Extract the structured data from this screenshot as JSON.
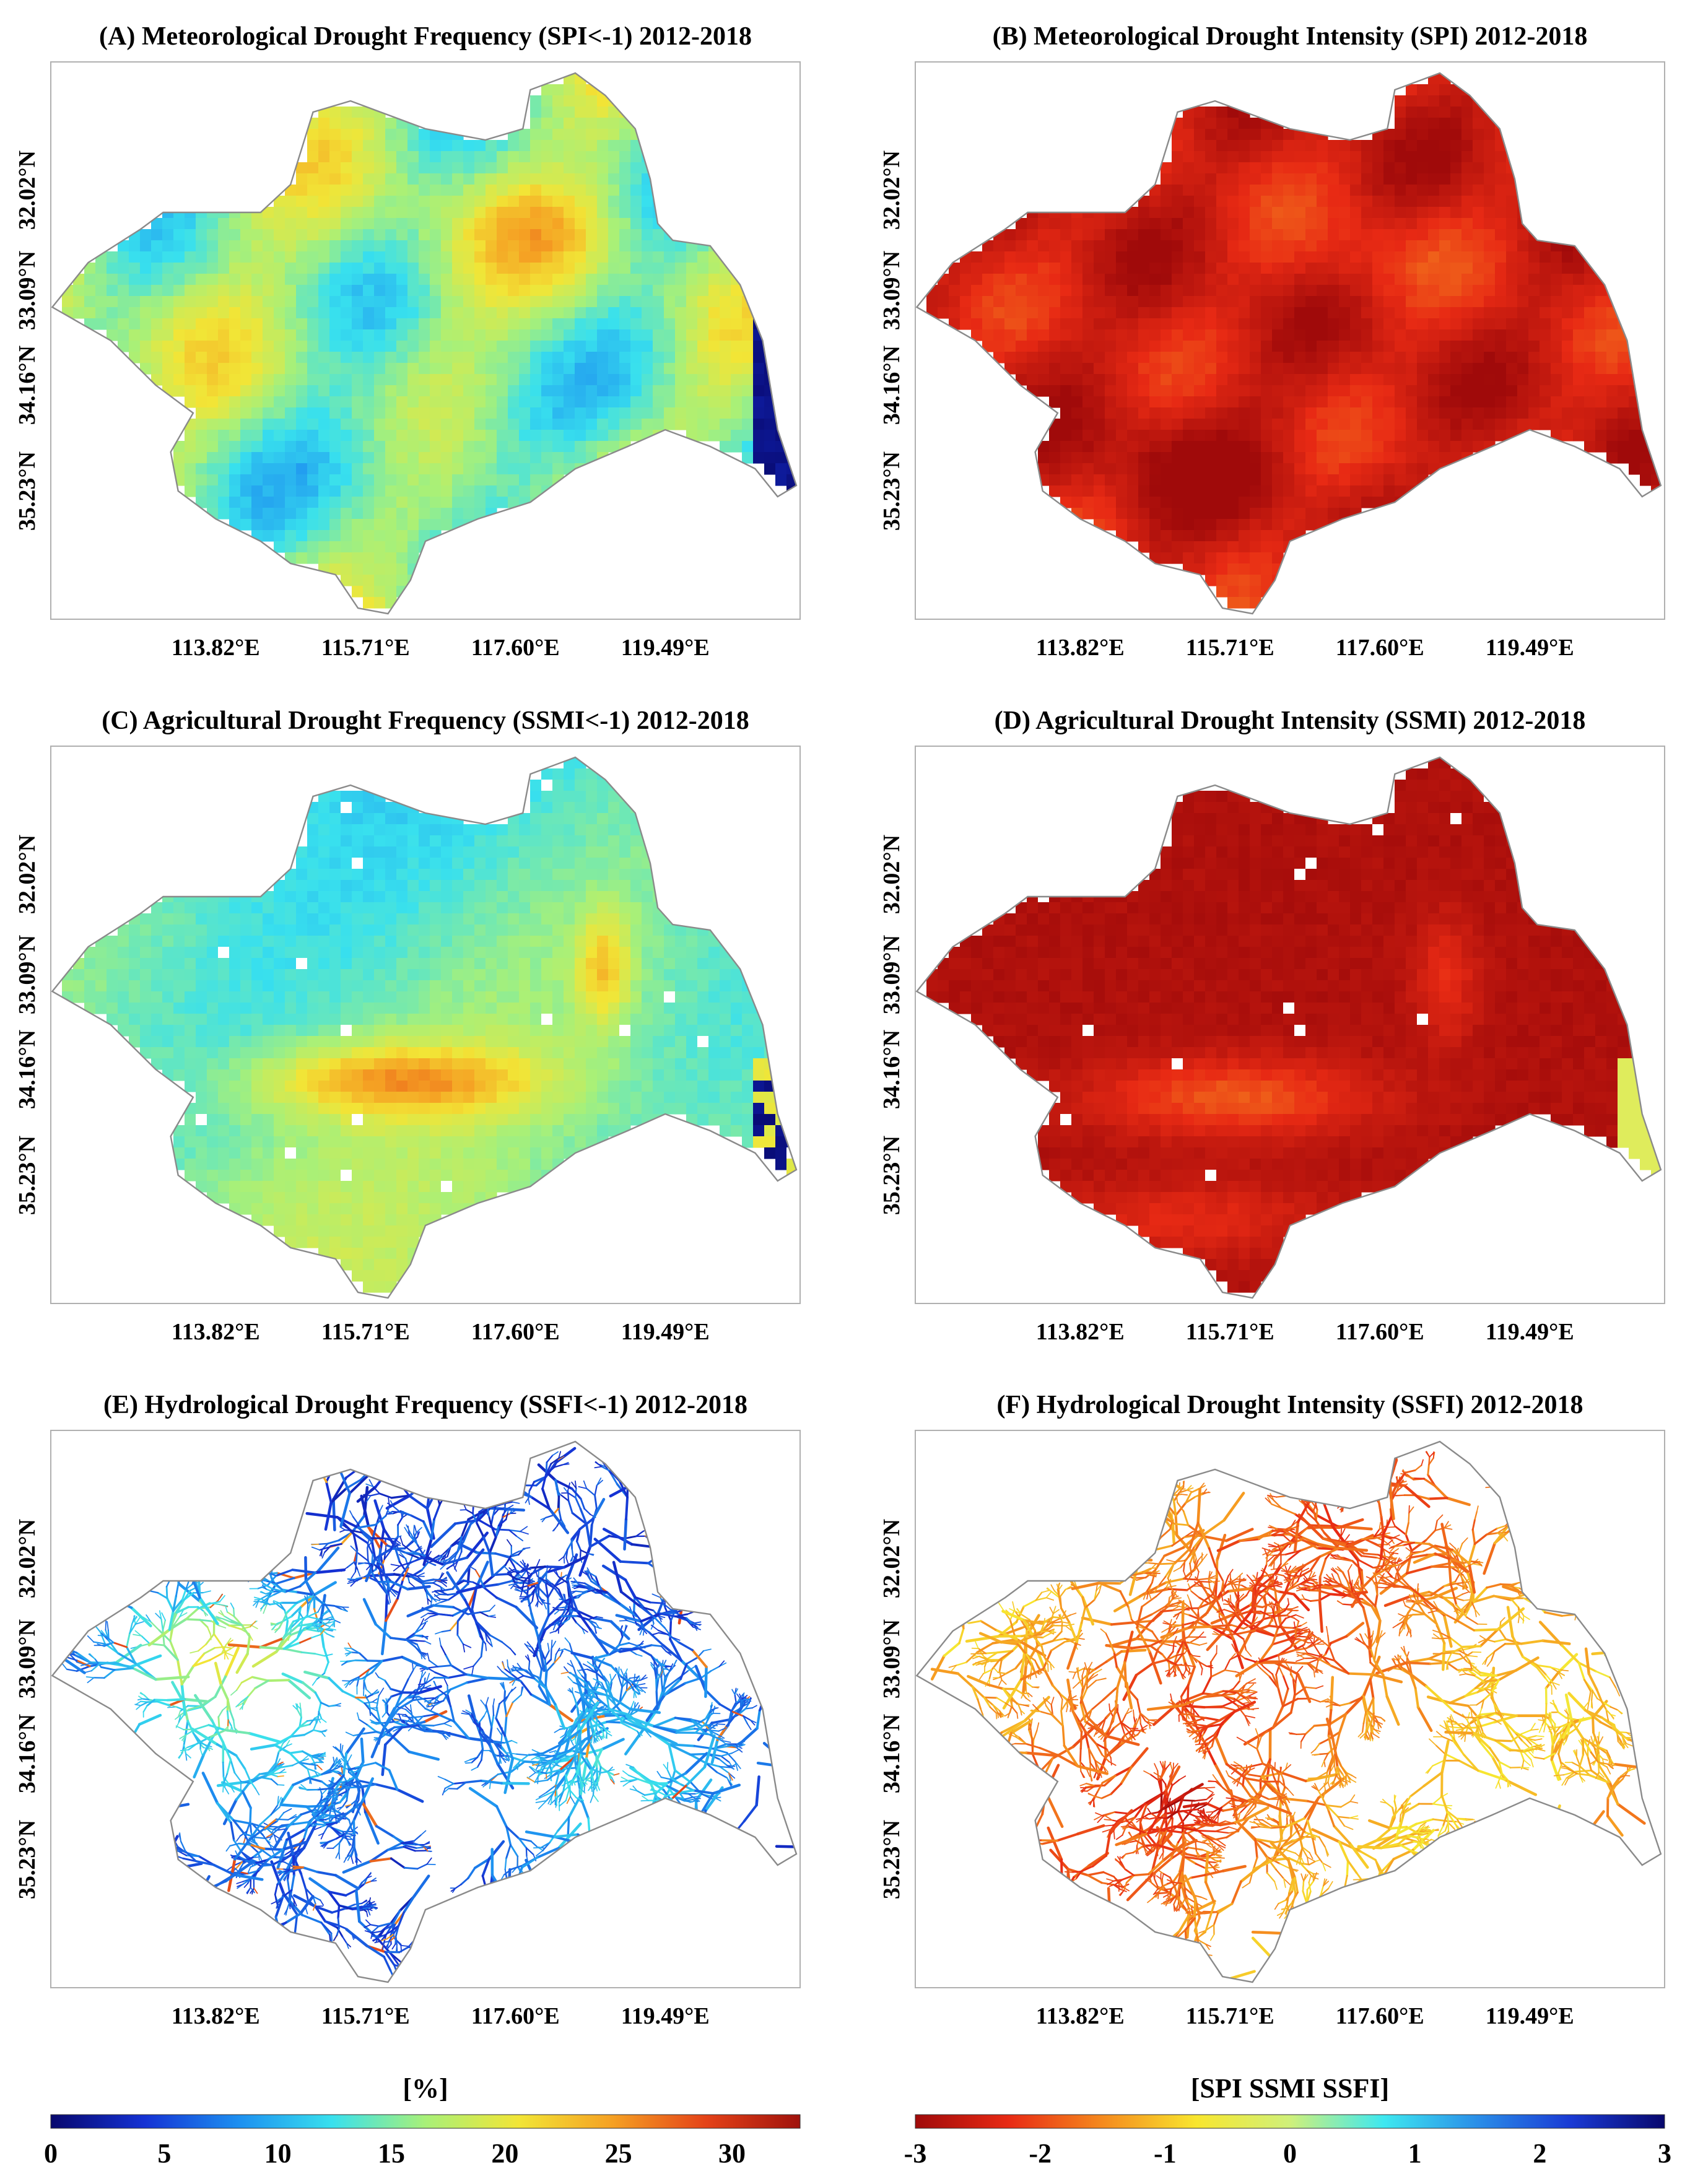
{
  "panels": [
    {
      "id": "A",
      "title": "(A) Meteorological Drought Frequency (SPI<-1) 2012-2018",
      "type": "raster",
      "palette": "freq",
      "field": "meteo_freq",
      "x_ticks": [
        "113.82°E",
        "115.71°E",
        "117.60°E",
        "119.49°E"
      ],
      "y_ticks": [
        "32.02°N",
        "33.09°N",
        "34.16°N",
        "35.23°N"
      ]
    },
    {
      "id": "B",
      "title": "(B) Meteorological Drought Intensity (SPI) 2012-2018",
      "type": "raster",
      "palette": "intensity",
      "field": "meteo_int",
      "x_ticks": [
        "113.82°E",
        "115.71°E",
        "117.60°E",
        "119.49°E"
      ],
      "y_ticks": [
        "32.02°N",
        "33.09°N",
        "34.16°N",
        "35.23°N"
      ]
    },
    {
      "id": "C",
      "title": "(C) Agricultural Drought Frequency (SSMI<-1) 2012-2018",
      "type": "raster",
      "palette": "freq",
      "field": "agri_freq",
      "x_ticks": [
        "113.82°E",
        "115.71°E",
        "117.60°E",
        "119.49°E"
      ],
      "y_ticks": [
        "32.02°N",
        "33.09°N",
        "34.16°N",
        "35.23°N"
      ]
    },
    {
      "id": "D",
      "title": "(D) Agricultural Drought Intensity (SSMI) 2012-2018",
      "type": "raster",
      "palette": "intensity",
      "field": "agri_int",
      "x_ticks": [
        "113.82°E",
        "115.71°E",
        "117.60°E",
        "119.49°E"
      ],
      "y_ticks": [
        "32.02°N",
        "33.09°N",
        "34.16°N",
        "35.23°N"
      ]
    },
    {
      "id": "E",
      "title": "(E) Hydrological Drought Frequency (SSFI<-1) 2012-2018",
      "type": "rivers",
      "palette": "freq",
      "field": "hydro_freq",
      "x_ticks": [
        "113.82°E",
        "115.71°E",
        "117.60°E",
        "119.49°E"
      ],
      "y_ticks": [
        "32.02°N",
        "33.09°N",
        "34.16°N",
        "35.23°N"
      ]
    },
    {
      "id": "F",
      "title": "(F) Hydrological Drought Intensity (SSFI) 2012-2018",
      "type": "rivers",
      "palette": "intensity",
      "field": "hydro_int",
      "x_ticks": [
        "113.82°E",
        "115.71°E",
        "117.60°E",
        "119.49°E"
      ],
      "y_ticks": [
        "32.02°N",
        "33.09°N",
        "34.16°N",
        "35.23°N"
      ]
    }
  ],
  "colorbars": {
    "frequency": {
      "label": "[%]",
      "ticks": [
        "0",
        "5",
        "10",
        "15",
        "20",
        "25",
        "30"
      ],
      "min": 0,
      "max": 33,
      "stops": [
        "#08086e",
        "#1532d4",
        "#1d8ff0",
        "#38e0ee",
        "#a8f078",
        "#f2e536",
        "#f5a023",
        "#e44218",
        "#a0120c"
      ]
    },
    "intensity": {
      "label": "[SPI SSMI SSFI]",
      "ticks": [
        "-3",
        "-2",
        "-1",
        "0",
        "1",
        "2",
        "3"
      ],
      "min": -3,
      "max": 3,
      "stops": [
        "#a00a0a",
        "#e82a14",
        "#f58a1e",
        "#f8e62e",
        "#cff07a",
        "#3ee8f0",
        "#2a8ee8",
        "#1a3ad4",
        "#08086e"
      ]
    }
  },
  "colors": {
    "frame": "#b0b0b0",
    "boundary": "#8a8a8a",
    "nodata": "#ffffff"
  }
}
